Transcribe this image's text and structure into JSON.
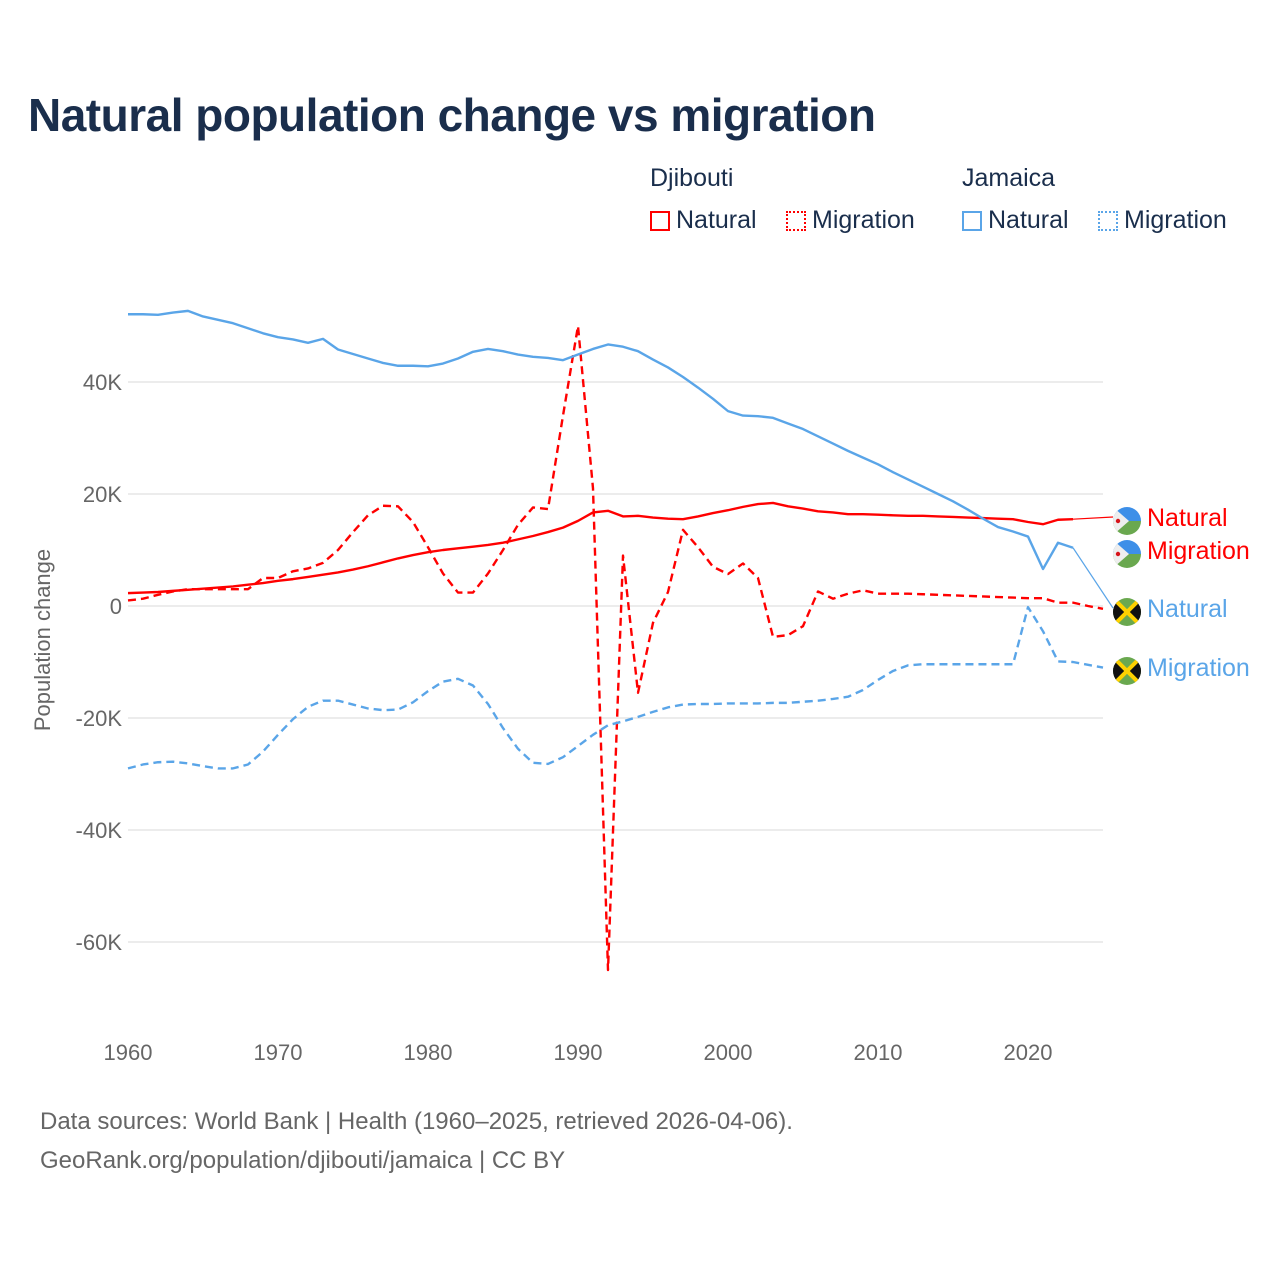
{
  "chart_data": {
    "type": "line",
    "title": "Natural population change vs migration",
    "xlabel": "",
    "ylabel": "Population change",
    "xlim": [
      1960,
      2025
    ],
    "ylim": [
      -66000,
      53000
    ],
    "x_ticks": [
      1960,
      1970,
      1980,
      1990,
      2000,
      2010,
      2020
    ],
    "x_tick_labels": [
      "1960",
      "1970",
      "1980",
      "1990",
      "2000",
      "2010",
      "2020"
    ],
    "y_ticks": [
      -60000,
      -40000,
      -20000,
      0,
      20000,
      40000
    ],
    "y_tick_labels": [
      "-60K",
      "-40K",
      "-20K",
      "0",
      "20K",
      "40K"
    ],
    "grid": true,
    "legend": {
      "placement": "top-right",
      "groups": [
        {
          "name": "Djibouti",
          "items": [
            "Natural",
            "Migration"
          ]
        },
        {
          "name": "Jamaica",
          "items": [
            "Natural",
            "Migration"
          ]
        }
      ]
    },
    "x_start": 1960,
    "series": [
      {
        "name": "Djibouti Natural",
        "country": "Djibouti",
        "kind": "Natural",
        "color": "#ff0000",
        "dashed": false,
        "end_label": "Natural",
        "values": [
          2300,
          2400,
          2500,
          2700,
          2900,
          3100,
          3300,
          3500,
          3800,
          4100,
          4500,
          4800,
          5200,
          5600,
          6000,
          6500,
          7100,
          7800,
          8500,
          9100,
          9600,
          10000,
          10300,
          10600,
          10900,
          11300,
          11900,
          12500,
          13200,
          14000,
          15200,
          16700,
          17000,
          16000,
          16100,
          15800,
          15600,
          15500,
          16000,
          16600,
          17100,
          17700,
          18200,
          18400,
          17800,
          17400,
          16900,
          16700,
          16400,
          16400,
          16300,
          16200,
          16100,
          16100,
          16000,
          15900,
          15800,
          15700,
          15600,
          15500,
          15000,
          14600,
          15400,
          15500
        ]
      },
      {
        "name": "Djibouti Migration",
        "country": "Djibouti",
        "kind": "Migration",
        "color": "#ff0000",
        "dashed": true,
        "end_label": "Migration",
        "values": [
          1000,
          1300,
          2000,
          2600,
          3000,
          3000,
          3000,
          3000,
          3000,
          5000,
          5000,
          6200,
          6700,
          7700,
          10000,
          13200,
          16200,
          17900,
          17800,
          15000,
          10500,
          5800,
          2400,
          2400,
          5800,
          10000,
          14500,
          17600,
          17300,
          34000,
          50000,
          21000,
          -65000,
          9000,
          -15500,
          -3000,
          2500,
          13600,
          10500,
          7000,
          5700,
          7600,
          5000,
          -5500,
          -5200,
          -3600,
          2600,
          1300,
          2200,
          2800,
          2200,
          2200,
          2200,
          2100,
          2000,
          1900,
          1800,
          1700,
          1600,
          1500,
          1400,
          1400,
          600,
          600,
          0,
          -500
        ]
      },
      {
        "name": "Jamaica Natural",
        "country": "Jamaica",
        "kind": "Natural",
        "color": "#5aa5e8",
        "dashed": false,
        "end_label": "Natural",
        "values": [
          52100,
          52100,
          52000,
          52400,
          52700,
          51700,
          51100,
          50500,
          49600,
          48700,
          48000,
          47600,
          47000,
          47700,
          45800,
          45000,
          44200,
          43400,
          42900,
          42900,
          42800,
          43300,
          44200,
          45400,
          45900,
          45500,
          44900,
          44500,
          44300,
          43900,
          44900,
          45900,
          46700,
          46300,
          45500,
          44000,
          42600,
          40900,
          39000,
          37000,
          34800,
          34000,
          33900,
          33600,
          32600,
          31600,
          30300,
          29000,
          27700,
          26500,
          25300,
          23900,
          22600,
          21300,
          20000,
          18700,
          17200,
          15600,
          14100,
          13300,
          12400,
          6600,
          11300,
          10400
        ]
      },
      {
        "name": "Jamaica Migration",
        "country": "Jamaica",
        "kind": "Migration",
        "color": "#5aa5e8",
        "dashed": true,
        "end_label": "Migration",
        "values": [
          -29000,
          -28300,
          -27900,
          -27800,
          -28100,
          -28600,
          -29000,
          -29000,
          -28300,
          -26000,
          -23000,
          -20200,
          -18000,
          -16900,
          -16900,
          -17600,
          -18300,
          -18600,
          -18500,
          -17200,
          -15200,
          -13500,
          -13000,
          -14200,
          -17500,
          -21800,
          -25500,
          -28000,
          -28200,
          -27000,
          -25000,
          -23000,
          -21300,
          -20600,
          -19800,
          -18900,
          -18100,
          -17600,
          -17500,
          -17500,
          -17400,
          -17400,
          -17400,
          -17300,
          -17300,
          -17100,
          -16900,
          -16600,
          -16200,
          -15000,
          -13200,
          -11600,
          -10600,
          -10400,
          -10400,
          -10400,
          -10400,
          -10400,
          -10400,
          -10400,
          -200,
          -4500,
          -9900,
          -10000,
          -10500,
          -11000
        ]
      }
    ]
  },
  "legend": {
    "djibouti": "Djibouti",
    "jamaica": "Jamaica",
    "natural": "Natural",
    "migration": "Migration"
  },
  "footer": {
    "line1": "Data sources: World Bank | Health (1960–2025, retrieved 2026-04-06).",
    "line2": "GeoRank.org/population/djibouti/jamaica | CC BY"
  }
}
